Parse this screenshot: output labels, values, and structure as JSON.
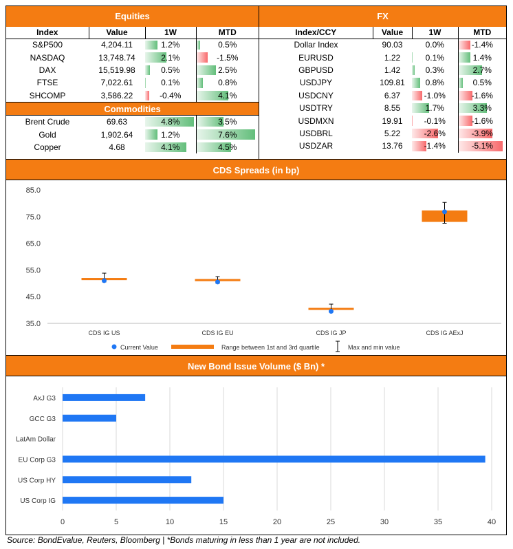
{
  "equities": {
    "title": "Equities",
    "headers": [
      "Index",
      "Value",
      "1W",
      "MTD"
    ],
    "rows": [
      {
        "name": "S&P500",
        "value": "4,204.11",
        "w1": "1.2%",
        "mtd": "0.5%",
        "w1v": 1.2,
        "mtdv": 0.5
      },
      {
        "name": "NASDAQ",
        "value": "13,748.74",
        "w1": "2.1%",
        "mtd": "-1.5%",
        "w1v": 2.1,
        "mtdv": -1.5
      },
      {
        "name": "DAX",
        "value": "15,519.98",
        "w1": "0.5%",
        "mtd": "2.5%",
        "w1v": 0.5,
        "mtdv": 2.5
      },
      {
        "name": "FTSE",
        "value": "7,022.61",
        "w1": "0.1%",
        "mtd": "0.8%",
        "w1v": 0.1,
        "mtdv": 0.8
      },
      {
        "name": "SHCOMP",
        "value": "3,586.22",
        "w1": "-0.4%",
        "mtd": "4.1%",
        "w1v": -0.4,
        "mtdv": 4.1
      }
    ]
  },
  "commodities": {
    "title": "Commodities",
    "rows": [
      {
        "name": "Brent Crude",
        "value": "69.63",
        "w1": "4.8%",
        "mtd": "3.5%",
        "w1v": 4.8,
        "mtdv": 3.5
      },
      {
        "name": "Gold",
        "value": "1,902.64",
        "w1": "1.2%",
        "mtd": "7.6%",
        "w1v": 1.2,
        "mtdv": 7.6
      },
      {
        "name": "Copper",
        "value": "4.68",
        "w1": "4.1%",
        "mtd": "4.5%",
        "w1v": 4.1,
        "mtdv": 4.5
      }
    ]
  },
  "fx": {
    "title": "FX",
    "headers": [
      "Index/CCY",
      "Value",
      "1W",
      "MTD"
    ],
    "rows": [
      {
        "name": "Dollar Index",
        "value": "90.03",
        "w1": "0.0%",
        "mtd": "-1.4%",
        "w1v": 0.0,
        "mtdv": -1.4
      },
      {
        "name": "EURUSD",
        "value": "1.22",
        "w1": "0.1%",
        "mtd": "1.4%",
        "w1v": 0.1,
        "mtdv": 1.4
      },
      {
        "name": "GBPUSD",
        "value": "1.42",
        "w1": "0.3%",
        "mtd": "2.7%",
        "w1v": 0.3,
        "mtdv": 2.7
      },
      {
        "name": "USDJPY",
        "value": "109.81",
        "w1": "0.8%",
        "mtd": "0.5%",
        "w1v": 0.8,
        "mtdv": 0.5
      },
      {
        "name": "USDCNY",
        "value": "6.37",
        "w1": "-1.0%",
        "mtd": "-1.6%",
        "w1v": -1.0,
        "mtdv": -1.6
      },
      {
        "name": "USDTRY",
        "value": "8.55",
        "w1": "1.7%",
        "mtd": "3.3%",
        "w1v": 1.7,
        "mtdv": 3.3
      },
      {
        "name": "USDMXN",
        "value": "19.91",
        "w1": "-0.1%",
        "mtd": "-1.6%",
        "w1v": -0.1,
        "mtdv": -1.6
      },
      {
        "name": "USDBRL",
        "value": "5.22",
        "w1": "-2.6%",
        "mtd": "-3.9%",
        "w1v": -2.6,
        "mtdv": -3.9
      },
      {
        "name": "USDZAR",
        "value": "13.76",
        "w1": "-1.4%",
        "mtd": "-5.1%",
        "w1v": -1.4,
        "mtdv": -5.1
      }
    ]
  },
  "colors": {
    "orange": "#f47c12",
    "blue": "#1f77f4",
    "green": "#63be7b",
    "red": "#f8696b"
  },
  "cds": {
    "title": "CDS Spreads (in bp)",
    "legend": {
      "current": "Current Value",
      "range": "Range between 1st and 3rd quartile",
      "range_sup1": "st",
      "range_sup2": "rd",
      "maxmin": "Max and min value"
    },
    "chart_data": {
      "type": "scatter",
      "categories": [
        "CDS IG US",
        "CDS IG EU",
        "CDS IG JP",
        "CDS IG AExJ"
      ],
      "yticks": [
        "85.0",
        "75.0",
        "65.0",
        "55.0",
        "45.0",
        "35.0"
      ],
      "ylim": [
        35,
        85
      ],
      "current": [
        51.0,
        50.5,
        39.5,
        76.8
      ],
      "q1": [
        51.2,
        50.8,
        40.2,
        73.0
      ],
      "q3": [
        52.0,
        51.6,
        40.8,
        77.3
      ],
      "min": [
        50.5,
        50.0,
        39.2,
        72.5
      ],
      "max": [
        53.8,
        52.5,
        42.2,
        80.3
      ]
    }
  },
  "bonds": {
    "title": "New Bond Issue Volume ($ Bn) *",
    "chart_data": {
      "type": "bar",
      "categories": [
        "AxJ G3",
        "GCC G3",
        "LatAm Dollar",
        "EU Corp G3",
        "US Corp HY",
        "US Corp IG"
      ],
      "values": [
        7.7,
        5.0,
        0,
        39.4,
        12.0,
        15.0
      ],
      "xticks": [
        "0",
        "5",
        "10",
        "15",
        "20",
        "25",
        "30",
        "35",
        "40"
      ],
      "xlim": [
        0,
        40
      ]
    }
  },
  "source": "Source: BondEvalue, Reuters, Bloomberg | *Bonds maturing in less than 1 year are not included."
}
